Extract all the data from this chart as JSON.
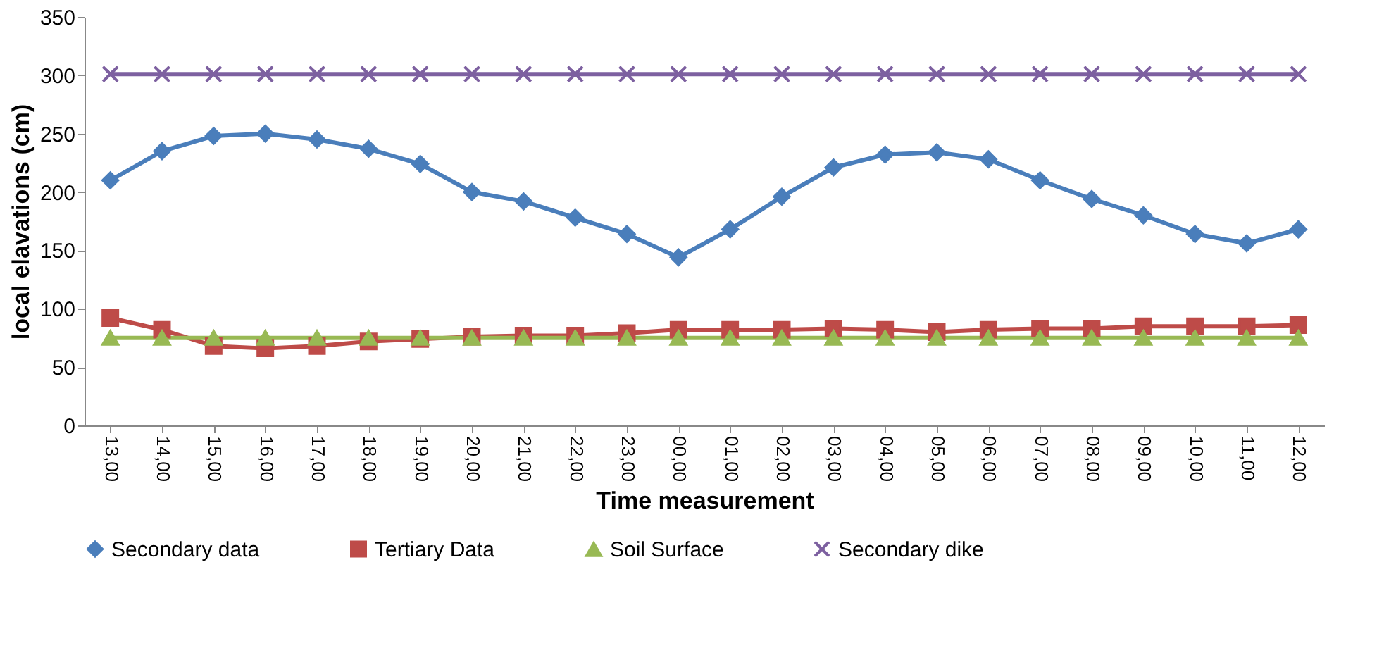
{
  "chart_data": {
    "type": "line",
    "xlabel": "Time measurement",
    "ylabel": "local elavations (cm)",
    "categories": [
      "13,00",
      "14,00",
      "15,00",
      "16,00",
      "17,00",
      "18,00",
      "19,00",
      "20,00",
      "21,00",
      "22,00",
      "23,00",
      "00,00",
      "01,00",
      "02,00",
      "03,00",
      "04,00",
      "05,00",
      "06,00",
      "07,00",
      "08,00",
      "09,00",
      "10,00",
      "11,00",
      "12,00"
    ],
    "series": [
      {
        "name": "Secondary data",
        "color": "#4a7ebb",
        "marker": "diamond",
        "values": [
          210,
          235,
          248,
          250,
          245,
          237,
          224,
          200,
          192,
          178,
          164,
          144,
          168,
          196,
          221,
          232,
          234,
          228,
          210,
          194,
          180,
          164,
          156,
          168
        ]
      },
      {
        "name": "Tertiary Data",
        "color": "#be4b48",
        "marker": "square",
        "values": [
          92,
          82,
          68,
          66,
          68,
          72,
          74,
          76,
          77,
          77,
          79,
          82,
          82,
          82,
          83,
          82,
          80,
          82,
          83,
          83,
          85,
          85,
          85,
          86
        ]
      },
      {
        "name": "Soil Surface",
        "color": "#98b954",
        "marker": "triangle",
        "values": [
          75,
          75,
          75,
          75,
          75,
          75,
          75,
          75,
          75,
          75,
          75,
          75,
          75,
          75,
          75,
          75,
          75,
          75,
          75,
          75,
          75,
          75,
          75,
          75
        ]
      },
      {
        "name": "Secondary dike",
        "color": "#7d60a0",
        "marker": "cross",
        "values": [
          301,
          301,
          301,
          301,
          301,
          301,
          301,
          301,
          301,
          301,
          301,
          301,
          301,
          301,
          301,
          301,
          301,
          301,
          301,
          301,
          301,
          301,
          301,
          301
        ]
      }
    ],
    "ylim": [
      0,
      350
    ],
    "yticks": [
      0,
      50,
      100,
      150,
      200,
      250,
      300,
      350
    ],
    "grid": false,
    "legend": "bottom",
    "line_style": "solid"
  }
}
